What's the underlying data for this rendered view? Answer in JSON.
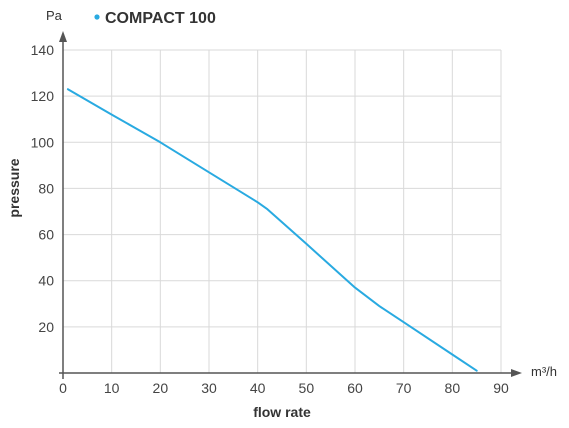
{
  "chart_data": {
    "type": "line",
    "title": "",
    "xlabel": "flow rate",
    "ylabel": "pressure",
    "x_unit": "m³/h",
    "y_unit": "Pa",
    "xlim": [
      0,
      90
    ],
    "ylim": [
      0,
      140
    ],
    "x_ticks": [
      0,
      10,
      20,
      30,
      40,
      50,
      60,
      70,
      80,
      90
    ],
    "y_ticks": [
      20,
      40,
      60,
      80,
      100,
      120,
      140
    ],
    "grid": true,
    "legend_position": "top",
    "series": [
      {
        "name": "COMPACT 100",
        "color": "#29aae1",
        "x": [
          1,
          10,
          20,
          30,
          40,
          42,
          50,
          60,
          65,
          70,
          80,
          85
        ],
        "y": [
          123,
          112,
          100,
          87,
          74,
          71,
          56,
          37,
          29,
          22,
          8,
          1
        ]
      }
    ]
  }
}
